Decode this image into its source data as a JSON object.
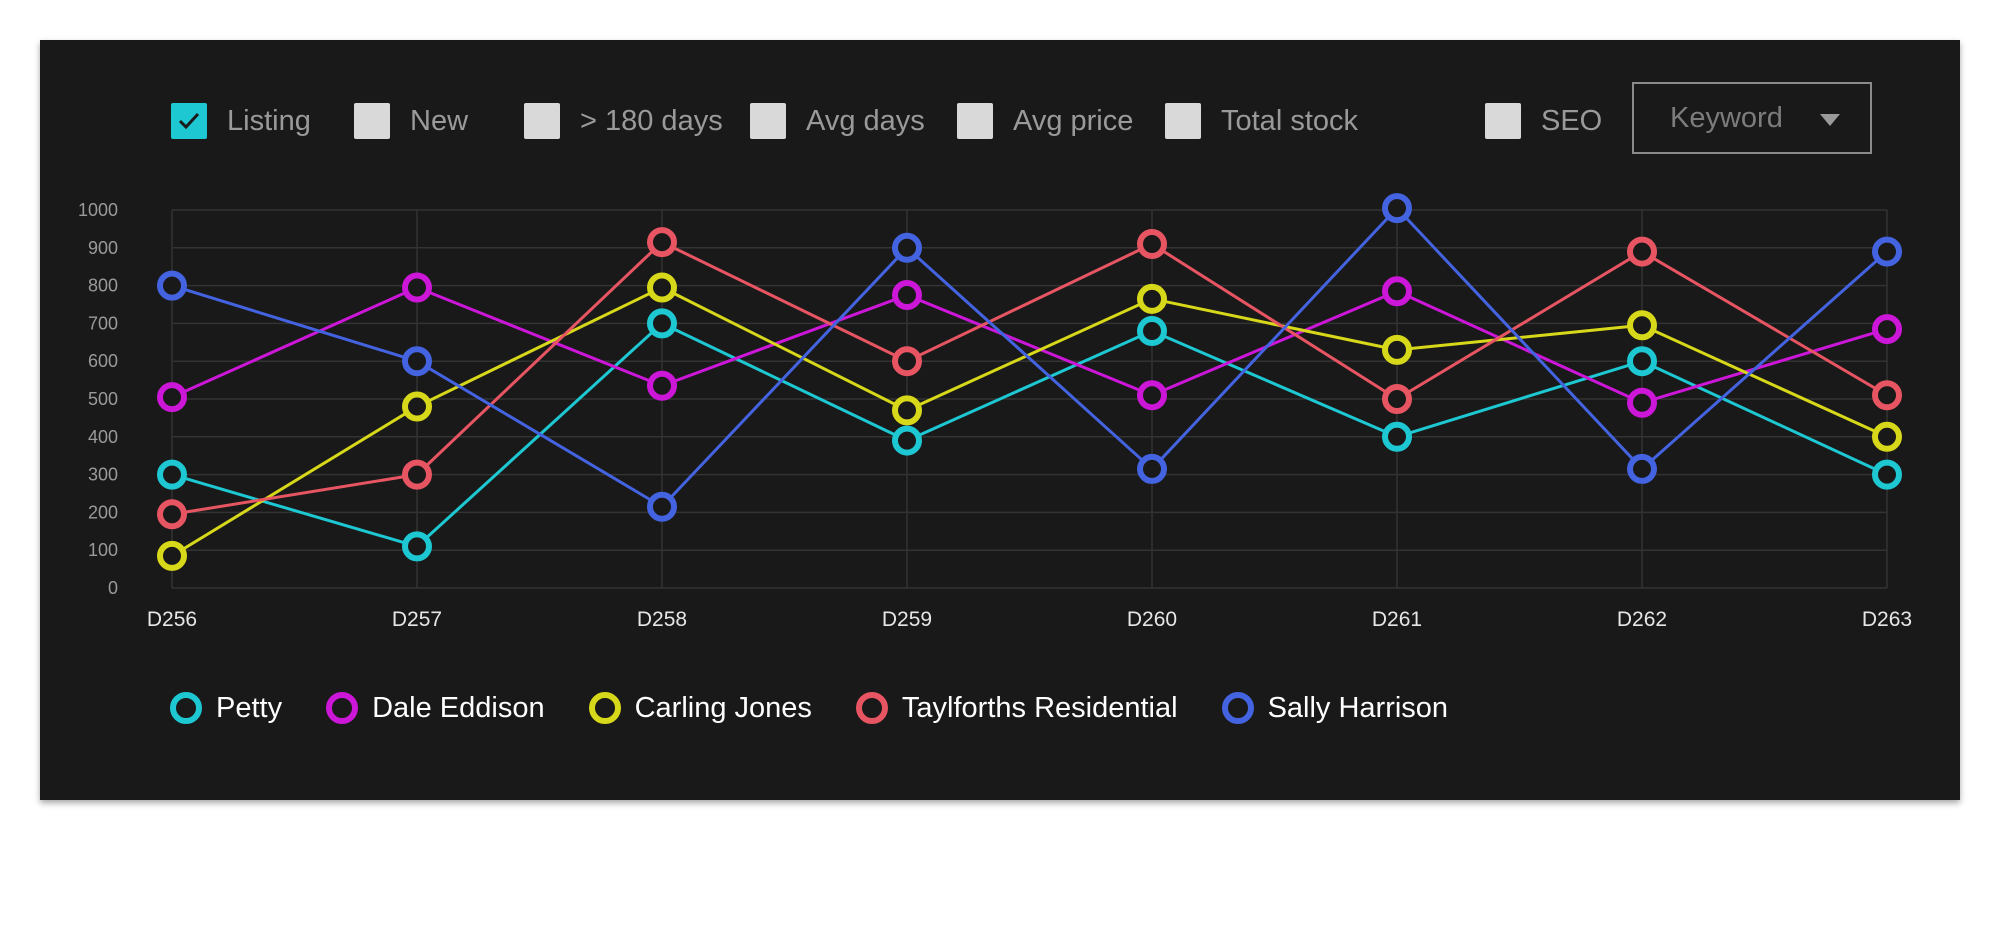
{
  "filters": [
    {
      "label": "Listing",
      "checked": true
    },
    {
      "label": "New",
      "checked": false
    },
    {
      "label": "> 180 days",
      "checked": false
    },
    {
      "label": "Avg days",
      "checked": false
    },
    {
      "label": "Avg price",
      "checked": false
    },
    {
      "label": "Total stock",
      "checked": false
    },
    {
      "label": "SEO",
      "checked": false
    }
  ],
  "keyword": {
    "placeholder": "Keyword",
    "icon": "chevron-down-icon"
  },
  "chart_data": {
    "type": "line",
    "x": [
      "D256",
      "D257",
      "D258",
      "D259",
      "D260",
      "D261",
      "D262",
      "D263"
    ],
    "ylim": [
      0,
      1000
    ],
    "yticks": [
      0,
      100,
      200,
      300,
      400,
      500,
      600,
      700,
      800,
      900,
      1000
    ],
    "grid": true,
    "legend_position": "bottom",
    "series": [
      {
        "name": "Petty",
        "color": "#1dc8d3",
        "values": [
          300,
          110,
          700,
          390,
          680,
          400,
          600,
          300
        ]
      },
      {
        "name": "Dale Eddison",
        "color": "#cc16d8",
        "values": [
          505,
          795,
          535,
          775,
          510,
          785,
          490,
          685
        ]
      },
      {
        "name": "Carling Jones",
        "color": "#d8d81a",
        "values": [
          85,
          480,
          795,
          470,
          765,
          630,
          695,
          400
        ]
      },
      {
        "name": "Taylforths Residential",
        "color": "#e75563",
        "values": [
          195,
          300,
          915,
          600,
          910,
          500,
          890,
          510
        ]
      },
      {
        "name": "Sally Harrison",
        "color": "#4463e0",
        "values": [
          800,
          600,
          215,
          900,
          315,
          1005,
          315,
          890
        ]
      }
    ]
  }
}
